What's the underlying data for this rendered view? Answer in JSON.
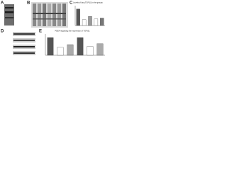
{
  "panels": [
    {
      "label": "A"
    },
    {
      "label": "B"
    },
    {
      "label": "C",
      "chart_data": {
        "type": "bar",
        "title": "Levels of lung TGF-β1 in the groups",
        "values": [
          1.0,
          0.35,
          0.55,
          0.4,
          0.45
        ],
        "colors": [
          "#555555",
          "#ffffff",
          "#999999",
          "#ffffff",
          "#777777"
        ],
        "ylim": [
          0,
          1.2
        ]
      }
    },
    {
      "label": "D"
    },
    {
      "label": "E",
      "chart_data": {
        "type": "bar",
        "title": "PDE4 regulating the expression of TGF-β1",
        "values": [
          1.0,
          0.45,
          0.6,
          1.0,
          0.5,
          0.65
        ],
        "colors": [
          "#555555",
          "#ffffff",
          "#aaaaaa",
          "#555555",
          "#ffffff",
          "#aaaaaa"
        ],
        "ylim": [
          0,
          1.2
        ]
      }
    }
  ]
}
